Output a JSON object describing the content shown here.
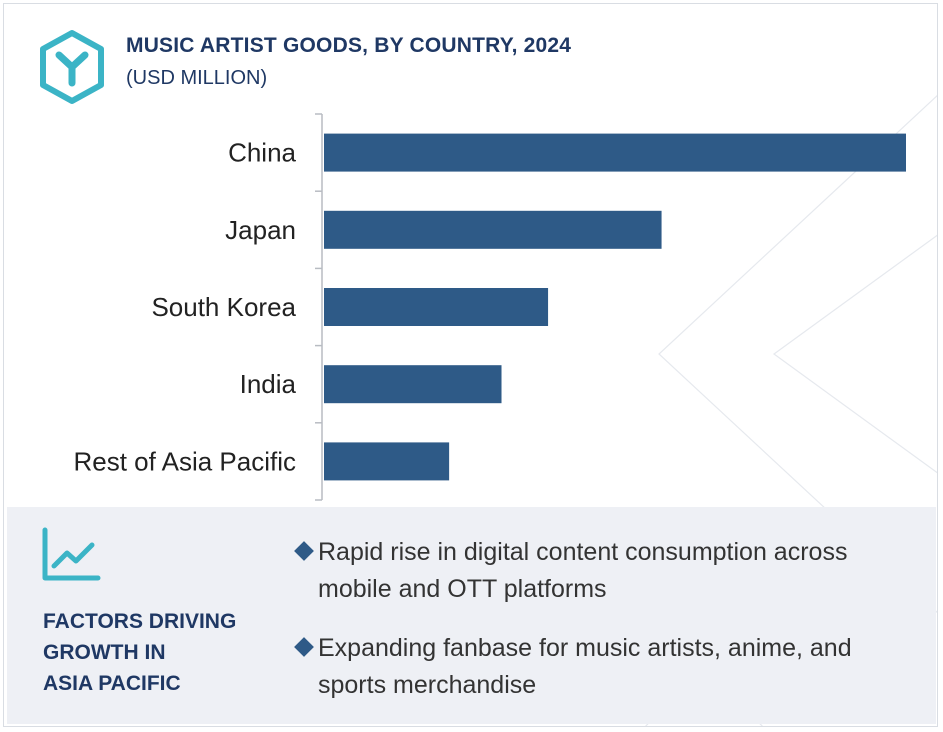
{
  "header": {
    "title": "MUSIC ARTIST GOODS, BY COUNTRY, 2024",
    "subtitle": "(USD MILLION)",
    "logo_icon": "hexagon-y-logo-icon"
  },
  "chart_data": {
    "type": "bar",
    "orientation": "horizontal",
    "categories": [
      "China",
      "Japan",
      "South Korea",
      "India",
      "Rest of Asia Pacific"
    ],
    "values": [
      100,
      58,
      38.5,
      30.5,
      21.5
    ],
    "title": "MUSIC ARTIST GOODS, BY COUNTRY, 2024",
    "xlabel": "",
    "ylabel": "",
    "xlim": [
      0,
      100
    ],
    "grid": false,
    "bar_color": "#2e5a87"
  },
  "factors": {
    "icon": "trend-line-chart-icon",
    "heading_lines": [
      "FACTORS DRIVING",
      "GROWTH IN",
      "ASIA PACIFIC"
    ],
    "items": [
      "Rapid rise in digital content consumption across mobile and OTT platforms",
      "Expanding fanbase for music artists, anime, and sports merchandise"
    ]
  },
  "colors": {
    "accent_teal": "#3bb4c6",
    "navy_text": "#1f3864",
    "bar": "#2e5a87",
    "panel_bg": "#eef0f5"
  }
}
